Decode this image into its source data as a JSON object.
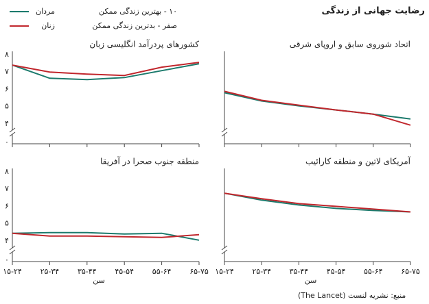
{
  "title": "رضایت جهانی از زندگی",
  "notes": [
    "۱۰ - بهترین زندگی ممکن",
    "صفر - بدترین زندگی ممکن"
  ],
  "legend": [
    {
      "name": "مردان",
      "color": "#1b7a6c"
    },
    {
      "name": "زنان",
      "color": "#c1272d"
    }
  ],
  "source": "منبع: نشریه لنست (The Lancet)",
  "chart_data": [
    {
      "type": "line",
      "title": "کشورهای پردرآمد انگلیسی زبان",
      "categories": [
        null,
        null,
        null,
        null,
        null,
        null
      ],
      "series": [
        {
          "values": [
            7.4,
            6.64,
            6.56,
            6.68,
            7.08,
            7.48
          ]
        },
        {
          "values": [
            7.4,
            7.0,
            6.88,
            6.8,
            7.28,
            7.56
          ]
        }
      ],
      "ylim": [
        3.4,
        8.2
      ],
      "yticks": [
        {
          "value": 8,
          "label": "۸"
        },
        {
          "value": 7,
          "label": "۷"
        },
        {
          "value": 6,
          "label": "۶"
        },
        {
          "value": 5,
          "label": "۵"
        },
        {
          "value": 4,
          "label": "۴"
        }
      ],
      "y_origin": {
        "value": 0,
        "label": "۰"
      }
    },
    {
      "type": "line",
      "title": "اتحاد شوروی سابق و اروپای شرقی",
      "categories": [
        null,
        null,
        null,
        null,
        null,
        null
      ],
      "series": [
        {
          "values": [
            5.8,
            5.32,
            5.04,
            4.8,
            4.56,
            4.28
          ]
        },
        {
          "values": [
            5.88,
            5.36,
            5.08,
            4.8,
            4.56,
            3.92
          ]
        }
      ],
      "ylim": [
        3.4,
        8.2
      ]
    },
    {
      "type": "line",
      "title": "منطقه جنوب صحرا در آفریقا",
      "categories": [
        "۱۵-۲۴",
        "۲۵-۳۴",
        "۳۵-۴۴",
        "۴۵-۵۴",
        "۵۵-۶۴",
        "۶۵-۷۵"
      ],
      "x_label": "سن",
      "series": [
        {
          "values": [
            4.44,
            4.48,
            4.48,
            4.4,
            4.44,
            4.04
          ]
        },
        {
          "values": [
            4.44,
            4.28,
            4.28,
            4.24,
            4.2,
            4.36
          ]
        }
      ],
      "ylim": [
        3.4,
        8.2
      ],
      "yticks": [
        {
          "value": 8,
          "label": "۸"
        },
        {
          "value": 7,
          "label": "۷"
        },
        {
          "value": 6,
          "label": "۶"
        },
        {
          "value": 5,
          "label": "۵"
        },
        {
          "value": 4,
          "label": "۴"
        }
      ],
      "y_origin": {
        "value": 0,
        "label": "۰"
      }
    },
    {
      "type": "line",
      "title": "آمریکای لاتین و منطقه کارائیب",
      "categories": [
        "۱۵-۲۴",
        "۲۵-۳۴",
        "۳۵-۴۴",
        "۴۵-۵۴",
        "۵۵-۶۴",
        "۶۵-۷۵"
      ],
      "x_label": "سن",
      "series": [
        {
          "values": [
            6.76,
            6.36,
            6.08,
            5.88,
            5.76,
            5.68
          ]
        },
        {
          "values": [
            6.76,
            6.44,
            6.16,
            6.0,
            5.84,
            5.68
          ]
        }
      ],
      "ylim": [
        3.4,
        8.2
      ]
    }
  ]
}
